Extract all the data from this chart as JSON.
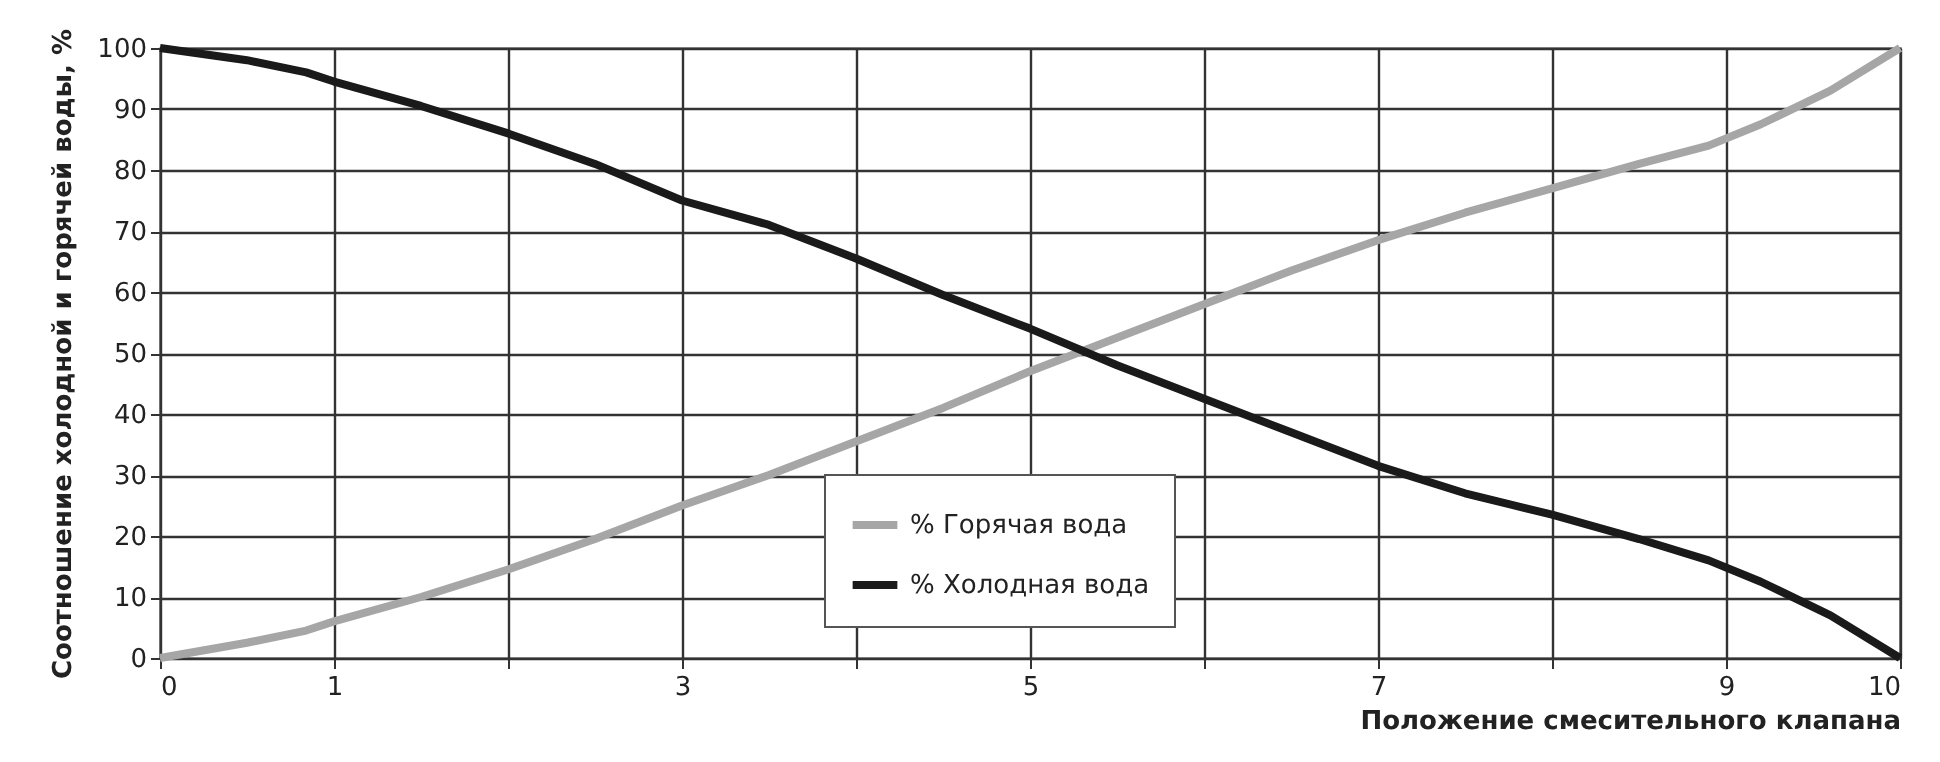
{
  "chart_data": {
    "type": "line",
    "xlabel": "Положение смесительного клапана",
    "ylabel": "Соотношение холодной и горячей воды, %",
    "xlim": [
      0,
      10
    ],
    "ylim": [
      0,
      100
    ],
    "xticks": [
      0,
      1,
      {
        "value": 2,
        "label": null
      },
      3,
      {
        "value": 4,
        "label": null
      },
      5,
      {
        "value": 6,
        "label": null
      },
      7,
      {
        "value": 8,
        "label": null
      },
      9,
      10
    ],
    "yticks": [
      0,
      10,
      20,
      30,
      40,
      50,
      60,
      70,
      80,
      90,
      100
    ],
    "x": [
      0,
      0.5,
      0.84,
      1,
      1.5,
      2,
      2.5,
      3,
      3.5,
      4,
      4.5,
      5,
      5.5,
      6,
      6.5,
      7,
      7.5,
      8,
      8.5,
      8.9,
      9.2,
      9.6,
      10
    ],
    "series": [
      {
        "name": "% Горячая вода",
        "color": "#a6a6a6",
        "values": [
          0,
          2.5,
          4.5,
          6,
          10,
          14.5,
          19.5,
          25,
          30,
          35.5,
          41,
          47,
          52.5,
          58,
          63.5,
          68.5,
          73,
          77,
          81,
          84,
          87.5,
          93,
          100
        ]
      },
      {
        "name": "% Холодная вода",
        "color": "#1a1a1a",
        "values": [
          100,
          98,
          96,
          94.5,
          90.5,
          86,
          81,
          75,
          71,
          65.5,
          59.5,
          54,
          48,
          42.5,
          37,
          31.5,
          27,
          23.5,
          19.5,
          16,
          12.5,
          7,
          0
        ]
      }
    ],
    "grid": true,
    "legend": "bottom",
    "marker": "none",
    "line_style": "solid"
  }
}
